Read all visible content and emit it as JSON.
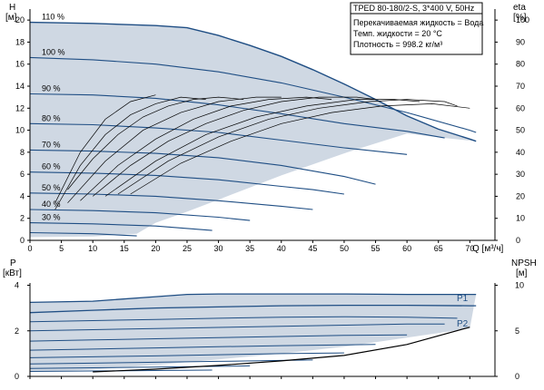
{
  "chart_data": [
    {
      "type": "line",
      "title": "TPED 80-180/2-S, 3*400 V, 50Hz",
      "info_lines": [
        "Перекачиваемая жидкость = Вода",
        "Темп. жидкости = 20 °C",
        "Плотность = 998.2 кг/м³"
      ],
      "xlabel": "Q [м³/ч]",
      "ylabel": "H",
      "ylabel_unit": "[м]",
      "y2label": "eta",
      "y2label_unit": "[%]",
      "xlim": [
        0,
        74
      ],
      "ylim": [
        0,
        21
      ],
      "y2lim": [
        0,
        105
      ],
      "xticks": [
        "0",
        "5",
        "10",
        "15",
        "20",
        "25",
        "30",
        "35",
        "40",
        "45",
        "50",
        "55",
        "60",
        "65",
        "70"
      ],
      "yticks": [
        "0",
        "2",
        "4",
        "6",
        "8",
        "10",
        "12",
        "14",
        "16",
        "18",
        "20"
      ],
      "y2ticks": [
        "0",
        "10",
        "20",
        "30",
        "40",
        "50",
        "60",
        "70",
        "80",
        "90",
        "100"
      ],
      "grid": false,
      "area_fill": "#cfd8e3",
      "curve_color": "#1f4e84",
      "eta_color": "#000000",
      "operating_area": {
        "x": [
          0,
          10,
          20,
          25,
          30,
          35,
          40,
          45,
          50,
          55,
          60,
          65,
          70,
          71,
          66,
          60,
          55,
          50,
          45,
          40,
          35,
          30,
          25,
          20,
          17,
          10,
          0
        ],
        "y": [
          19.8,
          19.7,
          19.5,
          19.3,
          18.6,
          17.7,
          16.7,
          15.5,
          14.2,
          12.8,
          11.3,
          10.1,
          9.2,
          9.0,
          9.3,
          9.7,
          8.8,
          7.9,
          6.9,
          5.9,
          4.8,
          3.7,
          2.6,
          1.6,
          0.6,
          0.35,
          0.3
        ]
      },
      "series": [
        {
          "name": "110 %",
          "x": [
            0,
            10,
            20,
            25,
            30,
            35,
            40,
            45,
            50,
            55,
            60,
            65,
            70,
            71
          ],
          "y": [
            19.8,
            19.7,
            19.5,
            19.3,
            18.6,
            17.7,
            16.7,
            15.5,
            14.2,
            12.8,
            11.3,
            10.1,
            9.2,
            9.0
          ]
        },
        {
          "name": "100 %",
          "x": [
            0,
            10,
            20,
            30,
            40,
            50,
            60,
            70,
            71
          ],
          "y": [
            16.6,
            16.4,
            16.0,
            15.3,
            14.3,
            13.0,
            11.6,
            10.0,
            9.8
          ]
        },
        {
          "name": "90 %",
          "x": [
            0,
            10,
            20,
            30,
            40,
            50,
            60,
            66
          ],
          "y": [
            13.3,
            13.2,
            12.9,
            12.3,
            11.5,
            10.6,
            9.9,
            9.3
          ]
        },
        {
          "name": "80 %",
          "x": [
            0,
            10,
            20,
            30,
            40,
            50,
            60
          ],
          "y": [
            10.6,
            10.5,
            10.2,
            9.8,
            9.1,
            8.4,
            7.8
          ]
        },
        {
          "name": "70 %",
          "x": [
            0,
            10,
            20,
            30,
            40,
            50,
            55
          ],
          "y": [
            8.2,
            8.1,
            7.9,
            7.5,
            6.8,
            5.8,
            5.1
          ]
        },
        {
          "name": "60 %",
          "x": [
            0,
            10,
            20,
            30,
            40,
            45,
            50
          ],
          "y": [
            6.2,
            6.1,
            5.9,
            5.5,
            4.9,
            4.6,
            4.2
          ]
        },
        {
          "name": "50 %",
          "x": [
            0,
            10,
            20,
            30,
            40,
            45
          ],
          "y": [
            4.3,
            4.2,
            4.0,
            3.6,
            3.1,
            2.8
          ]
        },
        {
          "name": "40 %",
          "x": [
            0,
            10,
            20,
            30,
            35
          ],
          "y": [
            2.8,
            2.7,
            2.5,
            2.1,
            1.8
          ]
        },
        {
          "name": "30 %",
          "x": [
            0,
            10,
            20,
            29
          ],
          "y": [
            1.6,
            1.5,
            1.3,
            0.9
          ]
        },
        {
          "name": "",
          "x": [
            0,
            10,
            17
          ],
          "y": [
            0.7,
            0.6,
            0.4
          ]
        }
      ],
      "eta_curves": [
        {
          "x": [
            4,
            8,
            12,
            16,
            20
          ],
          "y": [
            17,
            40,
            55,
            63,
            66
          ]
        },
        {
          "x": [
            4,
            8,
            12,
            16,
            20,
            24,
            28
          ],
          "y": [
            14,
            34,
            48,
            57,
            62,
            65,
            64
          ]
        },
        {
          "x": [
            6,
            10,
            14,
            18,
            22,
            26,
            30,
            34
          ],
          "y": [
            23,
            37,
            48,
            56,
            61,
            64,
            65,
            64
          ]
        },
        {
          "x": [
            6,
            12,
            18,
            24,
            30,
            36,
            40
          ],
          "y": [
            17,
            36,
            50,
            58,
            63,
            65,
            65
          ]
        },
        {
          "x": [
            8,
            14,
            20,
            26,
            32,
            38,
            44,
            48
          ],
          "y": [
            18,
            34,
            46,
            55,
            61,
            64,
            65,
            64
          ]
        },
        {
          "x": [
            10,
            16,
            22,
            28,
            34,
            40,
            46,
            52,
            55
          ],
          "y": [
            20,
            34,
            45,
            53,
            59,
            63,
            65,
            65,
            64
          ]
        },
        {
          "x": [
            12,
            20,
            28,
            36,
            44,
            52,
            58,
            62
          ],
          "y": [
            20,
            36,
            48,
            56,
            61,
            64,
            64,
            63
          ]
        },
        {
          "x": [
            14,
            22,
            30,
            38,
            46,
            54,
            60,
            66,
            68
          ],
          "y": [
            21,
            36,
            47,
            55,
            60,
            63,
            64,
            63,
            61
          ]
        },
        {
          "x": [
            16,
            24,
            32,
            40,
            48,
            56,
            64,
            70
          ],
          "y": [
            21,
            35,
            45,
            53,
            58,
            61,
            62,
            60
          ]
        }
      ],
      "labels": [
        "110 %",
        "100 %",
        "90 %",
        "80 %",
        "70 %",
        "60 %",
        "50 %",
        "40 %",
        "30 %"
      ]
    },
    {
      "type": "line",
      "ylabel": "P",
      "ylabel_unit": "[кВт]",
      "y2label": "NPSH",
      "y2label_unit": "[м]",
      "xlim": [
        0,
        74
      ],
      "ylim": [
        0,
        4.1
      ],
      "y2lim": [
        0,
        10.25
      ],
      "yticks": [
        "0",
        "2",
        "4"
      ],
      "y2ticks": [
        "0",
        "5",
        "10"
      ],
      "labels": [
        "P1",
        "P2"
      ],
      "power_area": {
        "x": [
          0,
          10,
          20,
          25,
          30,
          40,
          50,
          60,
          70,
          71,
          70,
          60,
          50,
          40,
          30,
          20,
          10,
          0
        ],
        "y": [
          3.25,
          3.3,
          3.5,
          3.6,
          3.62,
          3.62,
          3.62,
          3.6,
          3.6,
          3.6,
          2.1,
          1.7,
          1.3,
          1.0,
          0.75,
          0.5,
          0.3,
          0.2
        ]
      },
      "series": [
        {
          "name": "P1",
          "x": [
            0,
            10,
            20,
            25,
            30,
            40,
            50,
            60,
            70,
            71
          ],
          "y": [
            3.25,
            3.3,
            3.5,
            3.6,
            3.62,
            3.62,
            3.62,
            3.6,
            3.6,
            3.6
          ]
        },
        {
          "name": "P2",
          "x": [
            0,
            10,
            20,
            30,
            40,
            50,
            60,
            70,
            71
          ],
          "y": [
            2.8,
            2.9,
            3.0,
            3.05,
            3.1,
            3.12,
            3.12,
            3.1,
            3.1
          ]
        },
        {
          "name": "",
          "x": [
            0,
            10,
            20,
            30,
            40,
            50,
            60,
            68
          ],
          "y": [
            2.4,
            2.45,
            2.5,
            2.55,
            2.6,
            2.62,
            2.6,
            2.55
          ]
        },
        {
          "name": "",
          "x": [
            0,
            10,
            20,
            30,
            40,
            50,
            60,
            66
          ],
          "y": [
            2.0,
            2.05,
            2.1,
            2.15,
            2.2,
            2.25,
            2.3,
            2.3
          ]
        },
        {
          "name": "",
          "x": [
            0,
            10,
            20,
            30,
            40,
            50,
            60
          ],
          "y": [
            1.55,
            1.6,
            1.65,
            1.7,
            1.75,
            1.8,
            1.82
          ]
        },
        {
          "name": "",
          "x": [
            0,
            10,
            20,
            30,
            40,
            50,
            55
          ],
          "y": [
            1.15,
            1.2,
            1.25,
            1.3,
            1.35,
            1.38,
            1.4
          ]
        },
        {
          "name": "",
          "x": [
            0,
            10,
            20,
            30,
            40,
            50
          ],
          "y": [
            0.82,
            0.86,
            0.9,
            0.95,
            1.0,
            1.03
          ]
        },
        {
          "name": "",
          "x": [
            0,
            10,
            20,
            30,
            40,
            45
          ],
          "y": [
            0.55,
            0.58,
            0.62,
            0.66,
            0.7,
            0.72
          ]
        },
        {
          "name": "",
          "x": [
            0,
            10,
            20,
            30,
            35
          ],
          "y": [
            0.35,
            0.38,
            0.41,
            0.44,
            0.46
          ]
        },
        {
          "name": "",
          "x": [
            0,
            10,
            20,
            29
          ],
          "y": [
            0.22,
            0.24,
            0.26,
            0.28
          ]
        }
      ],
      "npsh_curves": [
        {
          "x": [
            10,
            20,
            30,
            40,
            50,
            60,
            70
          ],
          "y": [
            0.5,
            0.8,
            1.2,
            1.7,
            2.3,
            3.5,
            5.4
          ]
        }
      ]
    }
  ]
}
